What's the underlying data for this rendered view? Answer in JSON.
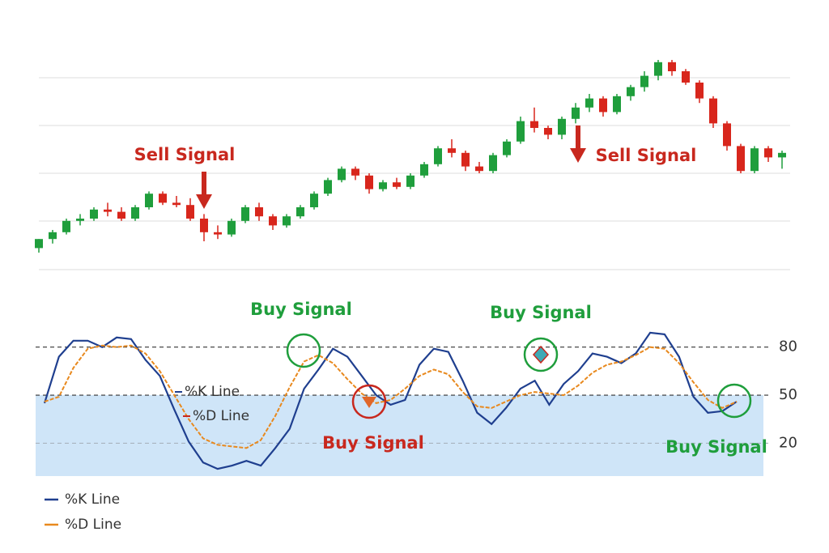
{
  "chart_data": [
    {
      "type": "candlestick",
      "open": [
        12,
        16,
        19,
        24,
        25,
        29,
        28,
        25,
        30,
        36,
        32,
        31,
        25,
        19,
        18,
        24,
        30,
        26,
        22,
        26,
        30,
        36,
        42,
        47,
        44,
        38,
        41,
        39,
        44,
        49,
        56,
        54,
        48,
        46,
        53,
        59,
        68,
        65,
        62,
        69,
        74,
        78,
        72,
        79,
        83,
        88,
        94,
        90,
        85,
        78,
        67,
        57,
        46,
        56,
        52
      ],
      "high": [
        16,
        20,
        25,
        27,
        30,
        32,
        30,
        31,
        37,
        37,
        35,
        34,
        27,
        22,
        25,
        31,
        32,
        27,
        27,
        31,
        37,
        43,
        48,
        48,
        45,
        42,
        43,
        45,
        50,
        57,
        60,
        55,
        50,
        54,
        60,
        70,
        74,
        66,
        70,
        76,
        80,
        79,
        80,
        84,
        90,
        95,
        95,
        91,
        86,
        79,
        68,
        58,
        57,
        57,
        55
      ],
      "low": [
        10,
        14,
        18,
        22,
        24,
        26,
        24,
        24,
        29,
        31,
        30,
        24,
        15,
        16,
        17,
        23,
        24,
        20,
        21,
        25,
        29,
        35,
        41,
        42,
        36,
        37,
        38,
        38,
        43,
        48,
        52,
        46,
        45,
        45,
        52,
        58,
        63,
        60,
        60,
        67,
        72,
        70,
        71,
        77,
        81,
        86,
        88,
        84,
        76,
        65,
        55,
        45,
        45,
        50,
        47
      ],
      "close": [
        16,
        19,
        24,
        25,
        29,
        28,
        25,
        30,
        36,
        32,
        31,
        25,
        19,
        18,
        24,
        30,
        26,
        22,
        26,
        30,
        36,
        42,
        47,
        44,
        38,
        41,
        39,
        44,
        49,
        56,
        54,
        48,
        46,
        53,
        59,
        68,
        65,
        62,
        69,
        74,
        78,
        72,
        79,
        83,
        88,
        94,
        90,
        85,
        78,
        67,
        57,
        46,
        56,
        52,
        54
      ],
      "up_color": "#1f9e3c",
      "down_color": "#d8261c",
      "ylim": [
        0,
        100
      ],
      "annotations": [
        {
          "text": "Sell Signal",
          "color": "#c8281e"
        },
        {
          "text": "Sell Signal",
          "color": "#c8281e"
        }
      ]
    },
    {
      "type": "line",
      "series": [
        {
          "name": "%K Line",
          "color": "#1f3f8f",
          "style": "solid",
          "values": [
            45,
            74,
            84,
            84,
            80,
            86,
            85,
            72,
            62,
            41,
            21,
            8,
            4,
            6,
            9,
            6,
            17,
            29,
            54,
            66,
            79,
            74,
            62,
            50,
            44,
            47,
            69,
            79,
            77,
            59,
            39,
            32,
            42,
            54,
            59,
            44,
            57,
            65,
            76,
            74,
            70,
            76,
            89,
            88,
            74,
            49,
            39,
            40,
            46
          ]
        },
        {
          "name": "%D Line",
          "color": "#e8891e",
          "style": "dashed",
          "values": [
            46,
            49,
            67,
            79,
            81,
            80,
            81,
            76,
            65,
            50,
            35,
            23,
            19,
            18,
            17,
            22,
            37,
            55,
            71,
            75,
            70,
            60,
            51,
            45,
            47,
            54,
            62,
            66,
            63,
            52,
            43,
            42,
            46,
            50,
            52,
            51,
            50,
            56,
            64,
            69,
            71,
            75,
            80,
            79,
            70,
            58,
            47,
            42,
            46
          ]
        }
      ],
      "ylim": [
        0,
        95
      ],
      "yticks": [
        20,
        50,
        80
      ],
      "annotations": [
        {
          "text": "Buy Signal",
          "color": "#1f9e3c"
        },
        {
          "text": "Buy Signal",
          "color": "#1f9e3c"
        },
        {
          "text": "Buy Signal",
          "color": "#c8281e"
        },
        {
          "text": "Buy Signal",
          "color": "#1f9e3c"
        },
        {
          "text": "%K Line",
          "color": "#1f3f8f"
        },
        {
          "text": "%D Line",
          "color": "#c8281e"
        }
      ]
    }
  ]
}
